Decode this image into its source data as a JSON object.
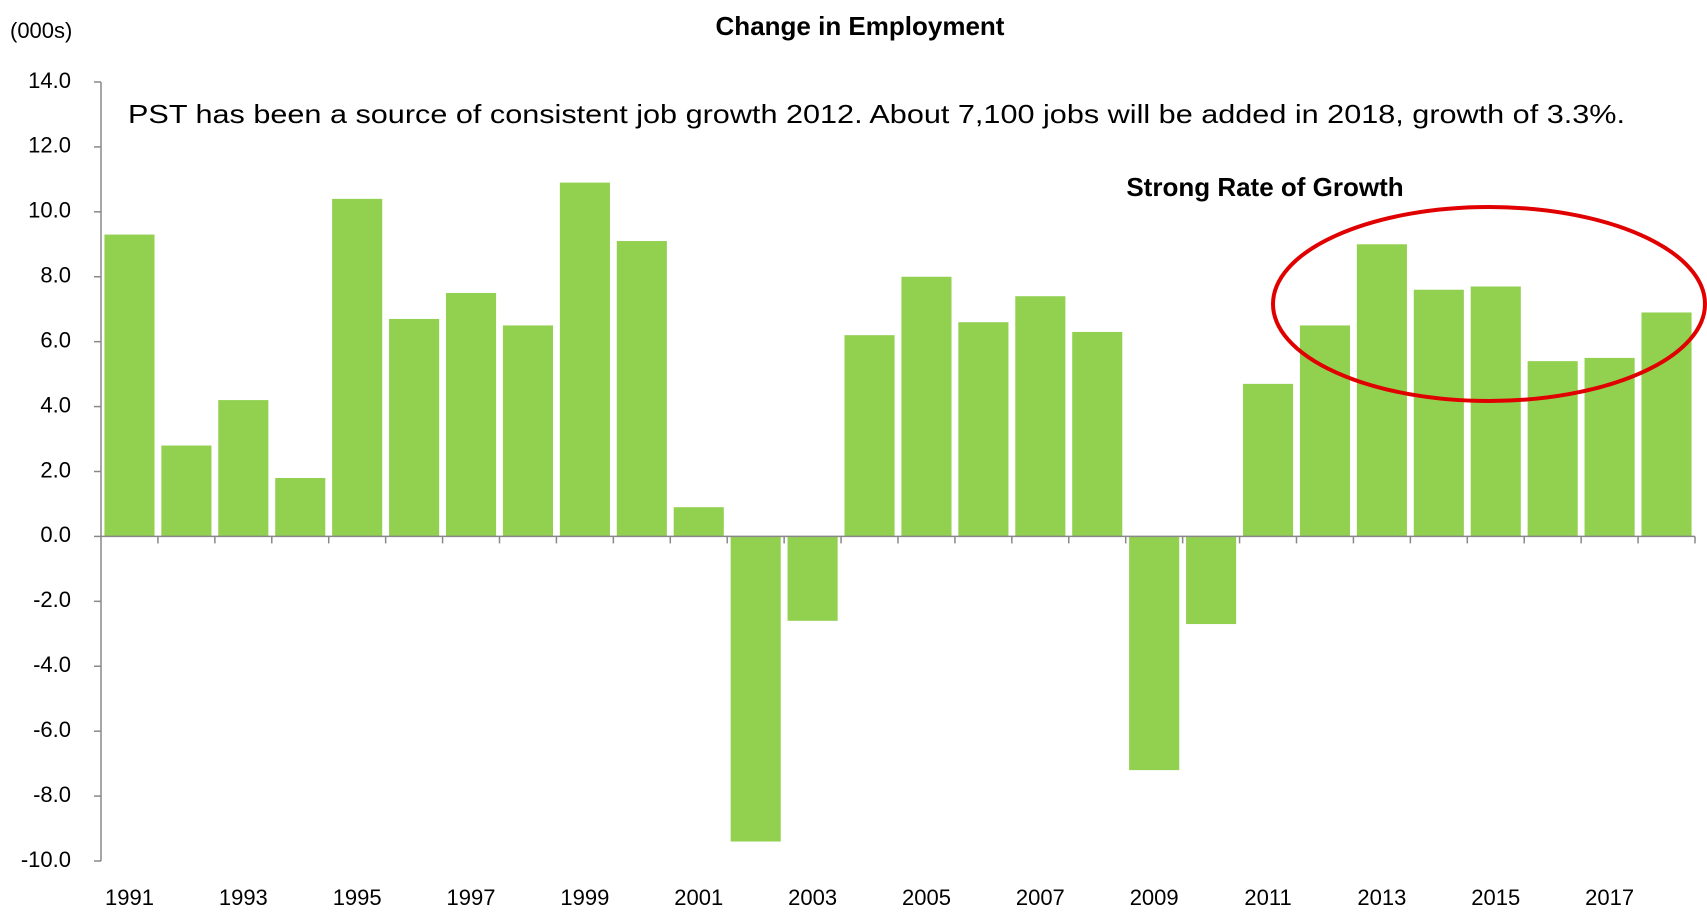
{
  "chart_data": {
    "type": "bar",
    "title": "Change in Employment",
    "y_unit_label": "(000s)",
    "annotation": "PST has been a source of consistent job growth 2012. About 7,100 jobs will be added in 2018, growth of 3.3%.",
    "highlight_label": "Strong Rate of Growth",
    "highlight_color": "#e00000",
    "categories": [
      "1991",
      null,
      "1993",
      null,
      "1995",
      null,
      "1997",
      null,
      "1999",
      null,
      "2001",
      null,
      "2003",
      null,
      "2005",
      null,
      "2007",
      null,
      "2009",
      null,
      "2011",
      null,
      "2013",
      null,
      "2015",
      null,
      "2017",
      null
    ],
    "values": [
      9.3,
      2.8,
      4.2,
      1.8,
      10.4,
      6.7,
      7.5,
      6.5,
      10.9,
      9.1,
      0.9,
      -9.4,
      -2.6,
      6.2,
      8.0,
      6.6,
      7.4,
      6.3,
      -7.2,
      -2.7,
      4.7,
      6.5,
      9.0,
      7.6,
      7.7,
      5.4,
      5.5,
      6.9
    ],
    "color": "#92d050",
    "ylim": [
      -10,
      14
    ],
    "yticks": [
      {
        "value": -10,
        "label": "-10.0"
      },
      {
        "value": -8,
        "label": "-8.0"
      },
      {
        "value": -6,
        "label": "-6.0"
      },
      {
        "value": -4,
        "label": "-4.0"
      },
      {
        "value": -2,
        "label": "-2.0"
      },
      {
        "value": 0,
        "label": "0.0"
      },
      {
        "value": 2,
        "label": "2.0"
      },
      {
        "value": 4,
        "label": "4.0"
      },
      {
        "value": 6,
        "label": "6.0"
      },
      {
        "value": 8,
        "label": "8.0"
      },
      {
        "value": 10,
        "label": "10.0"
      },
      {
        "value": 12,
        "label": "12.0"
      },
      {
        "value": 14,
        "label": "14.0"
      }
    ],
    "grid": false
  }
}
